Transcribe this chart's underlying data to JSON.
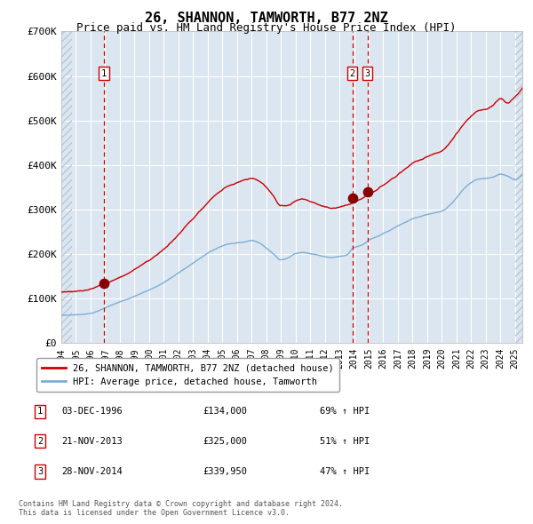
{
  "title": "26, SHANNON, TAMWORTH, B77 2NZ",
  "subtitle": "Price paid vs. HM Land Registry's House Price Index (HPI)",
  "title_fontsize": 11,
  "subtitle_fontsize": 9,
  "ylim": [
    0,
    700000
  ],
  "yticks": [
    0,
    100000,
    200000,
    300000,
    400000,
    500000,
    600000,
    700000
  ],
  "ytick_labels": [
    "£0",
    "£100K",
    "£200K",
    "£300K",
    "£400K",
    "£500K",
    "£600K",
    "£700K"
  ],
  "red_line_color": "#cc0000",
  "blue_line_color": "#7bafd4",
  "marker_color": "#880000",
  "dashed_line_color": "#cc0000",
  "plot_bg_color": "#dce6f1",
  "grid_color": "#ffffff",
  "legend_label_red": "26, SHANNON, TAMWORTH, B77 2NZ (detached house)",
  "legend_label_blue": "HPI: Average price, detached house, Tamworth",
  "footer_text": "Contains HM Land Registry data © Crown copyright and database right 2024.\nThis data is licensed under the Open Government Licence v3.0.",
  "sale_points": [
    {
      "label": "1",
      "date_str": "03-DEC-1996",
      "date_num": 1996.92,
      "price": 134000,
      "pct": "69% ↑ HPI"
    },
    {
      "label": "2",
      "date_str": "21-NOV-2013",
      "date_num": 2013.89,
      "price": 325000,
      "pct": "51% ↑ HPI"
    },
    {
      "label": "3",
      "date_str": "28-NOV-2014",
      "date_num": 2014.91,
      "price": 339950,
      "pct": "47% ↑ HPI"
    }
  ],
  "xmin": 1994.0,
  "xmax": 2025.5,
  "hatch_xmin_end": 1994.75,
  "hatch_xmax_start": 2025.0
}
